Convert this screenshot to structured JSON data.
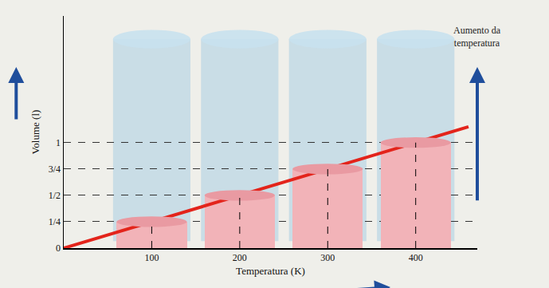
{
  "chart_data": {
    "type": "line",
    "x_label": "Temperatura (K)",
    "y_label": "Volume (l)",
    "annotation": "Aumento da temperatura",
    "xlim": [
      0,
      470
    ],
    "xticks": [
      100,
      200,
      300,
      400
    ],
    "ylim": [
      0,
      2.2
    ],
    "yticks": [
      0,
      {
        "value": 0.25,
        "label": "1/4"
      },
      {
        "value": 0.5,
        "label": "1/2"
      },
      {
        "value": 0.75,
        "label": "3/4"
      },
      {
        "value": 1,
        "label": "1"
      }
    ],
    "grid": true,
    "series": [
      {
        "type": "bar",
        "color": "#f2b3b8",
        "x": [
          100,
          200,
          300,
          400
        ],
        "values": [
          0.25,
          0.5,
          0.75,
          1
        ]
      },
      {
        "type": "line",
        "color": "#e3241b",
        "x": [
          0,
          100,
          200,
          300,
          400,
          460
        ],
        "values": [
          0,
          0.25,
          0.5,
          0.75,
          1,
          1.15
        ]
      }
    ]
  }
}
